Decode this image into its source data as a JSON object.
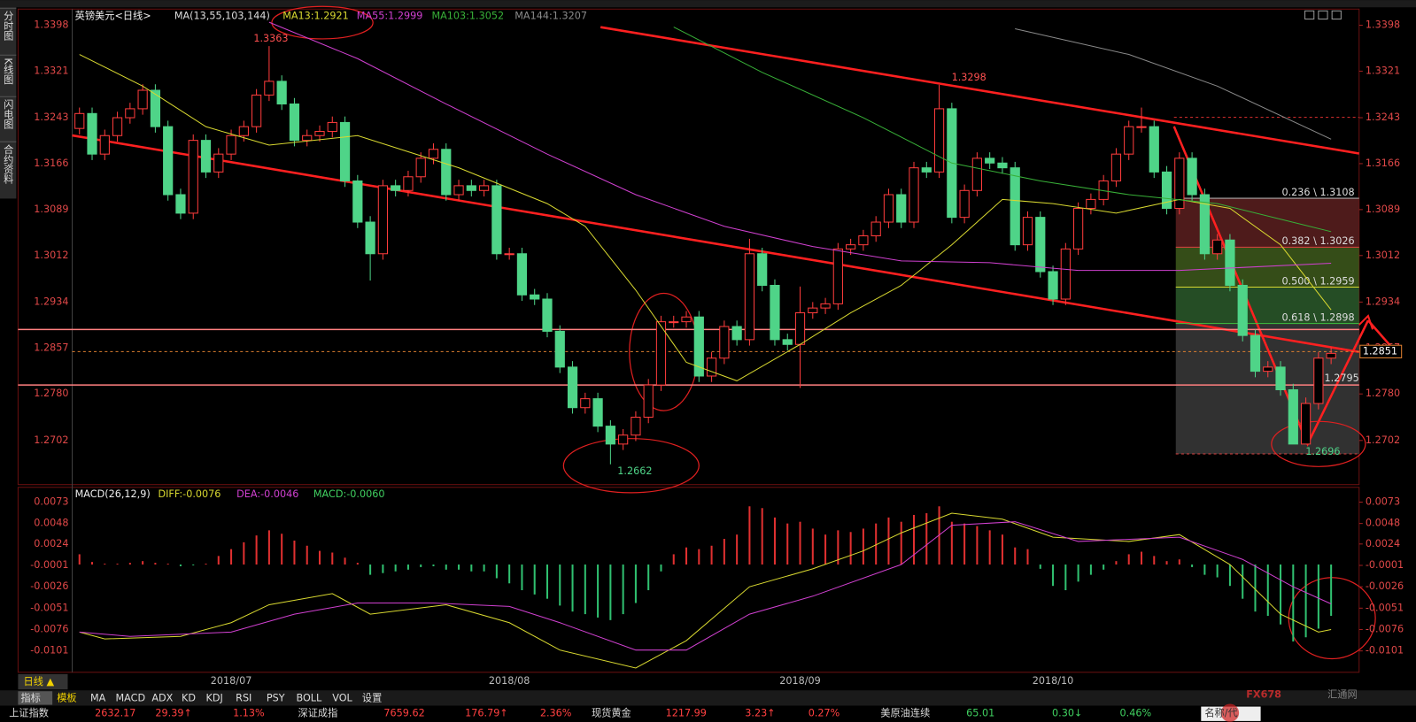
{
  "chart_data": [
    {
      "type": "candlestick",
      "title": "英镑美元<日线>",
      "indicator": "MA(13,55,103,144)",
      "categories": [
        null,
        null,
        null,
        null,
        null,
        null,
        null,
        null,
        null,
        null,
        null,
        null,
        "2018/07",
        null,
        null,
        null,
        null,
        null,
        null,
        null,
        null,
        null,
        null,
        null,
        null,
        null,
        null,
        null,
        null,
        null,
        null,
        null,
        null,
        null,
        "2018/08",
        null,
        null,
        null,
        null,
        null,
        null,
        null,
        null,
        null,
        null,
        null,
        null,
        null,
        null,
        null,
        null,
        null,
        null,
        null,
        null,
        null,
        null,
        "2018/09",
        null,
        null,
        null,
        null,
        null,
        null,
        null,
        null,
        null,
        null,
        null,
        null,
        null,
        null,
        null,
        null,
        null,
        null,
        null,
        "2018/10",
        null,
        null,
        null,
        null,
        null,
        null,
        null,
        null,
        null,
        null,
        null,
        null,
        null,
        null,
        null,
        null,
        null,
        null,
        null,
        null,
        null,
        null
      ],
      "open": [
        1.3225,
        1.325,
        1.3182,
        1.3213,
        1.3243,
        1.3258,
        1.3289,
        1.3228,
        1.3114,
        1.3083,
        1.3205,
        1.3152,
        1.3182,
        1.3213,
        1.3228,
        1.3281,
        1.3304,
        1.3266,
        1.3205,
        1.3213,
        1.322,
        1.3235,
        1.3137,
        1.3068,
        1.3015,
        1.3129,
        1.3121,
        1.3144,
        1.3175,
        1.319,
        1.3114,
        1.3129,
        1.3121,
        1.3129,
        1.3015,
        1.3015,
        1.2946,
        1.2939,
        1.2885,
        1.2825,
        1.2757,
        1.2772,
        1.2726,
        1.2696,
        1.2711,
        1.2741,
        1.2795,
        1.2901,
        1.2901,
        1.2909,
        1.281,
        1.284,
        1.2893,
        1.2871,
        1.3015,
        1.2962,
        1.2871,
        1.2863,
        1.2916,
        1.2924,
        1.2931,
        1.3023,
        1.303,
        1.3045,
        1.3068,
        1.3114,
        1.3068,
        1.3159,
        1.3152,
        1.3258,
        1.3076,
        1.3121,
        1.3175,
        1.3167,
        1.3159,
        1.303,
        1.3076,
        1.2985,
        1.2939,
        1.3023,
        1.3091,
        1.3106,
        1.3137,
        1.3182,
        1.3228,
        1.3228,
        1.3152,
        1.3091,
        1.3175,
        1.3114,
        1.3015,
        1.3038,
        1.2962,
        1.2878,
        1.2818,
        1.2825,
        1.2787,
        1.2696,
        1.2764,
        1.284
      ],
      "high": [
        1.326,
        1.326,
        1.3223,
        1.3253,
        1.3268,
        1.3299,
        1.3299,
        1.3238,
        1.3124,
        1.3215,
        1.3215,
        1.3192,
        1.3223,
        1.3238,
        1.3291,
        1.3363,
        1.3314,
        1.3276,
        1.3223,
        1.323,
        1.3245,
        1.3245,
        1.3147,
        1.3078,
        1.3139,
        1.3139,
        1.3154,
        1.3185,
        1.32,
        1.32,
        1.3139,
        1.3139,
        1.3139,
        1.3139,
        1.3025,
        1.3025,
        1.2956,
        1.2949,
        1.2895,
        1.2835,
        1.2782,
        1.2782,
        1.2736,
        1.2721,
        1.2751,
        1.2805,
        1.2911,
        1.2911,
        1.2919,
        1.2919,
        1.285,
        1.2903,
        1.2903,
        1.304,
        1.3025,
        1.2972,
        1.2881,
        1.296,
        1.2934,
        1.2941,
        1.3033,
        1.304,
        1.3055,
        1.3078,
        1.3124,
        1.3124,
        1.3169,
        1.3169,
        1.3298,
        1.3268,
        1.3131,
        1.3185,
        1.3185,
        1.3177,
        1.3169,
        1.3086,
        1.3086,
        1.2995,
        1.3033,
        1.3101,
        1.3116,
        1.3147,
        1.3192,
        1.3238,
        1.326,
        1.3238,
        1.3162,
        1.3185,
        1.3185,
        1.3124,
        1.3048,
        1.3048,
        1.2972,
        1.2888,
        1.2835,
        1.2835,
        1.2797,
        1.2774,
        1.285,
        1.2858
      ],
      "low": [
        1.3215,
        1.3172,
        1.3172,
        1.3203,
        1.3233,
        1.3248,
        1.3218,
        1.3104,
        1.3073,
        1.3073,
        1.3142,
        1.3142,
        1.3172,
        1.3203,
        1.3218,
        1.3271,
        1.3256,
        1.3195,
        1.3195,
        1.3203,
        1.321,
        1.3127,
        1.3058,
        1.297,
        1.3005,
        1.3111,
        1.3111,
        1.3134,
        1.3165,
        1.3104,
        1.3104,
        1.3111,
        1.3111,
        1.3005,
        1.3005,
        1.2936,
        1.2929,
        1.2875,
        1.2815,
        1.2747,
        1.2747,
        1.2716,
        1.2662,
        1.2686,
        1.2701,
        1.2731,
        1.2785,
        1.2891,
        1.2891,
        1.28,
        1.28,
        1.283,
        1.2861,
        1.2861,
        1.2952,
        1.2861,
        1.2853,
        1.279,
        1.2906,
        1.2914,
        1.2921,
        1.3013,
        1.302,
        1.3035,
        1.3058,
        1.3058,
        1.3058,
        1.3142,
        1.3142,
        1.3066,
        1.3066,
        1.3111,
        1.3157,
        1.3149,
        1.302,
        1.302,
        1.2975,
        1.2929,
        1.2929,
        1.3013,
        1.3081,
        1.3096,
        1.3127,
        1.3172,
        1.3218,
        1.3142,
        1.3081,
        1.3081,
        1.3104,
        1.3005,
        1.3005,
        1.2952,
        1.2868,
        1.2808,
        1.2808,
        1.2777,
        1.2696,
        1.27,
        1.2754,
        1.283
      ],
      "close": [
        1.325,
        1.3182,
        1.3213,
        1.3243,
        1.3258,
        1.3289,
        1.3228,
        1.3114,
        1.3083,
        1.3205,
        1.3152,
        1.3182,
        1.3213,
        1.3228,
        1.3281,
        1.3304,
        1.3266,
        1.3205,
        1.3213,
        1.322,
        1.3235,
        1.3137,
        1.3068,
        1.3015,
        1.3129,
        1.3121,
        1.3144,
        1.3175,
        1.319,
        1.3114,
        1.3129,
        1.3121,
        1.3129,
        1.3015,
        1.3015,
        1.2946,
        1.2939,
        1.2885,
        1.2825,
        1.2757,
        1.2772,
        1.2726,
        1.2696,
        1.2711,
        1.2741,
        1.2795,
        1.2901,
        1.2901,
        1.2909,
        1.281,
        1.284,
        1.2893,
        1.2871,
        1.3015,
        1.2962,
        1.2871,
        1.2863,
        1.2916,
        1.2924,
        1.2931,
        1.3023,
        1.303,
        1.3045,
        1.3068,
        1.3114,
        1.3068,
        1.3159,
        1.3152,
        1.3258,
        1.3076,
        1.3121,
        1.3175,
        1.3167,
        1.3159,
        1.303,
        1.3076,
        1.2985,
        1.2939,
        1.3023,
        1.3091,
        1.3106,
        1.3137,
        1.3182,
        1.3228,
        1.3228,
        1.3152,
        1.3091,
        1.3175,
        1.3114,
        1.3015,
        1.3038,
        1.2962,
        1.2878,
        1.2818,
        1.2825,
        1.2787,
        1.2696,
        1.2764,
        1.284,
        1.2848
      ],
      "up_color": "#ff3c3c",
      "down_color": "#4fd488",
      "ylim": [
        1.2628,
        1.3422
      ],
      "yticks": [
        1.2702,
        {
          "value": 1.278,
          "label": "1.2780"
        },
        1.2857,
        1.2934,
        1.3012,
        1.3089,
        1.3166,
        1.3243,
        1.3321,
        1.3398
      ],
      "series": [
        {
          "name": "MA13:1.2921",
          "color": "#d8d830",
          "x": [
            0,
            5,
            10,
            15,
            22,
            30,
            37,
            40,
            44,
            48,
            52,
            57,
            61,
            65,
            69,
            73,
            77,
            82,
            87,
            91,
            95,
            99
          ],
          "values": [
            1.3349,
            1.3296,
            1.3228,
            1.3197,
            1.3213,
            1.3159,
            1.3099,
            1.3061,
            1.2954,
            1.2833,
            1.2802,
            1.2863,
            1.2916,
            1.2962,
            1.303,
            1.3106,
            1.3099,
            1.3083,
            1.3106,
            1.3091,
            1.303,
            1.2921
          ]
        },
        {
          "name": "MA55:1.2999",
          "color": "#d040d0",
          "x": [
            15,
            22,
            29,
            37,
            44,
            51,
            58,
            65,
            72,
            79,
            87,
            99
          ],
          "values": [
            1.3403,
            1.3342,
            1.3266,
            1.3182,
            1.3114,
            1.3061,
            1.3027,
            1.3003,
            1.3,
            1.2987,
            1.2987,
            1.2999
          ]
        },
        {
          "name": "MA103:1.3052",
          "color": "#38b038",
          "x": [
            47,
            54,
            62,
            69,
            76,
            83,
            90,
            99
          ],
          "values": [
            1.3395,
            1.3319,
            1.3243,
            1.3167,
            1.3137,
            1.3114,
            1.3099,
            1.3052
          ]
        },
        {
          "name": "MA144:1.3207",
          "color": "#8a8a8a",
          "x": [
            74,
            83,
            90,
            99
          ],
          "values": [
            1.3392,
            1.3349,
            1.3296,
            1.3207
          ]
        }
      ],
      "price_labels": [
        1.3363,
        1.2662,
        1.3298,
        1.2696
      ],
      "fib_levels": [
        {
          "value": 1.3108,
          "label": "0.236 \\ 1.3108"
        },
        {
          "value": 1.3026,
          "label": "0.382 \\ 1.3026"
        },
        {
          "value": 1.2959,
          "label": "0.500 \\ 1.2959"
        },
        {
          "value": 1.2898,
          "label": "0.618 \\ 1.2898"
        }
      ],
      "horizontal_lines": [
        1.2888,
        1.2795
      ],
      "last_price": 1.2851
    },
    {
      "type": "macd",
      "title": "MACD(26,12,9)",
      "ylim": [
        -0.0126,
        0.0085
      ],
      "yticks": [
        -0.0101,
        -0.0076,
        -0.0051,
        -0.0026,
        -0.0001,
        0.0024,
        0.0048,
        0.0073
      ],
      "histogram": {
        "name": "MACD:-0.0060",
        "up_color": "#e03030",
        "down_color": "#30c070",
        "values": [
          0.0012,
          0.0003,
          0.0001,
          0.0001,
          0.0002,
          0.0004,
          0.0002,
          0.0001,
          -0.0002,
          -0.0001,
          0.0001,
          0.001,
          0.0018,
          0.0026,
          0.0034,
          0.004,
          0.0036,
          0.0028,
          0.0022,
          0.0016,
          0.0014,
          0.0008,
          0.0002,
          -0.0012,
          -0.001,
          -0.0008,
          -0.0006,
          -0.0003,
          -0.0002,
          -0.0006,
          -0.0006,
          -0.0008,
          -0.0008,
          -0.0016,
          -0.0022,
          -0.003,
          -0.0035,
          -0.004,
          -0.0048,
          -0.0055,
          -0.0058,
          -0.0062,
          -0.0065,
          -0.0058,
          -0.0045,
          -0.003,
          -0.0008,
          0.0012,
          0.002,
          0.0018,
          0.0022,
          0.003,
          0.0035,
          0.0068,
          0.0066,
          0.0055,
          0.0048,
          0.005,
          0.0042,
          0.0035,
          0.004,
          0.0038,
          0.0042,
          0.0048,
          0.0055,
          0.005,
          0.0058,
          0.006,
          0.0068,
          0.005,
          0.0048,
          0.0045,
          0.004,
          0.0035,
          0.002,
          0.0018,
          -0.0005,
          -0.0025,
          -0.003,
          -0.002,
          -0.0012,
          -0.0006,
          0.0004,
          0.0012,
          0.0015,
          0.001,
          0.0004,
          0.0006,
          -0.0003,
          -0.0012,
          -0.0015,
          -0.0025,
          -0.004,
          -0.0055,
          -0.006,
          -0.007,
          -0.009,
          -0.0085,
          -0.0075,
          -0.006
        ]
      },
      "series": [
        {
          "name": "DIFF:-0.0076",
          "color": "#d8d830",
          "x": [
            0,
            2,
            8,
            12,
            15,
            20,
            23,
            29,
            34,
            38,
            44,
            48,
            53,
            58,
            62,
            65,
            69,
            73,
            77,
            83,
            87,
            91,
            95,
            98,
            99
          ],
          "values": [
            -0.0079,
            -0.0087,
            -0.0084,
            -0.0068,
            -0.0047,
            -0.0034,
            -0.0058,
            -0.0047,
            -0.0068,
            -0.01,
            -0.0121,
            -0.0089,
            -0.0026,
            -0.0005,
            0.0016,
            0.0037,
            0.006,
            0.0053,
            0.0032,
            0.0027,
            0.0035,
            0,
            -0.0058,
            -0.0079,
            -0.0076
          ]
        },
        {
          "name": "DEA:-0.0046",
          "color": "#d040d0",
          "x": [
            0,
            4,
            12,
            17,
            22,
            28,
            34,
            38,
            44,
            48,
            53,
            58,
            65,
            69,
            74,
            79,
            87,
            92,
            96,
            99
          ],
          "values": [
            -0.0079,
            -0.0084,
            -0.0079,
            -0.0058,
            -0.0045,
            -0.0045,
            -0.0049,
            -0.0068,
            -0.01,
            -0.01,
            -0.0058,
            -0.0037,
            0,
            0.0046,
            0.005,
            0.0027,
            0.0032,
            0.0006,
            -0.0026,
            -0.0046
          ]
        }
      ]
    }
  ],
  "sidebar": [
    "分时图",
    "K线图",
    "闪电图",
    "合约资料"
  ],
  "period": "日线 ▲",
  "tabs": [
    "指标",
    "模板",
    "MA",
    "MACD",
    "ADX",
    "KD",
    "KDJ",
    "RSI",
    "PSY",
    "BOLL",
    "VOL",
    "设置"
  ],
  "ticker": [
    {
      "name": "上证指数",
      "price": "2632.17",
      "change": "29.39↑",
      "pct": "1.13%",
      "color": "#ff4040"
    },
    {
      "name": "深证成指",
      "price": "7659.62",
      "change": "176.79↑",
      "pct": "2.36%",
      "color": "#ff4040"
    },
    {
      "name": "现货黄金",
      "price": "1217.99",
      "change": "3.23↑",
      "pct": "0.27%",
      "color": "#ff4040"
    },
    {
      "name": "美原油连续",
      "price": "65.01",
      "change": "0.30↓",
      "pct": "0.46%",
      "color": "#40d060"
    }
  ],
  "search": "名称/代",
  "watermark": {
    "brand": "FX678",
    "site": "汇通网"
  }
}
